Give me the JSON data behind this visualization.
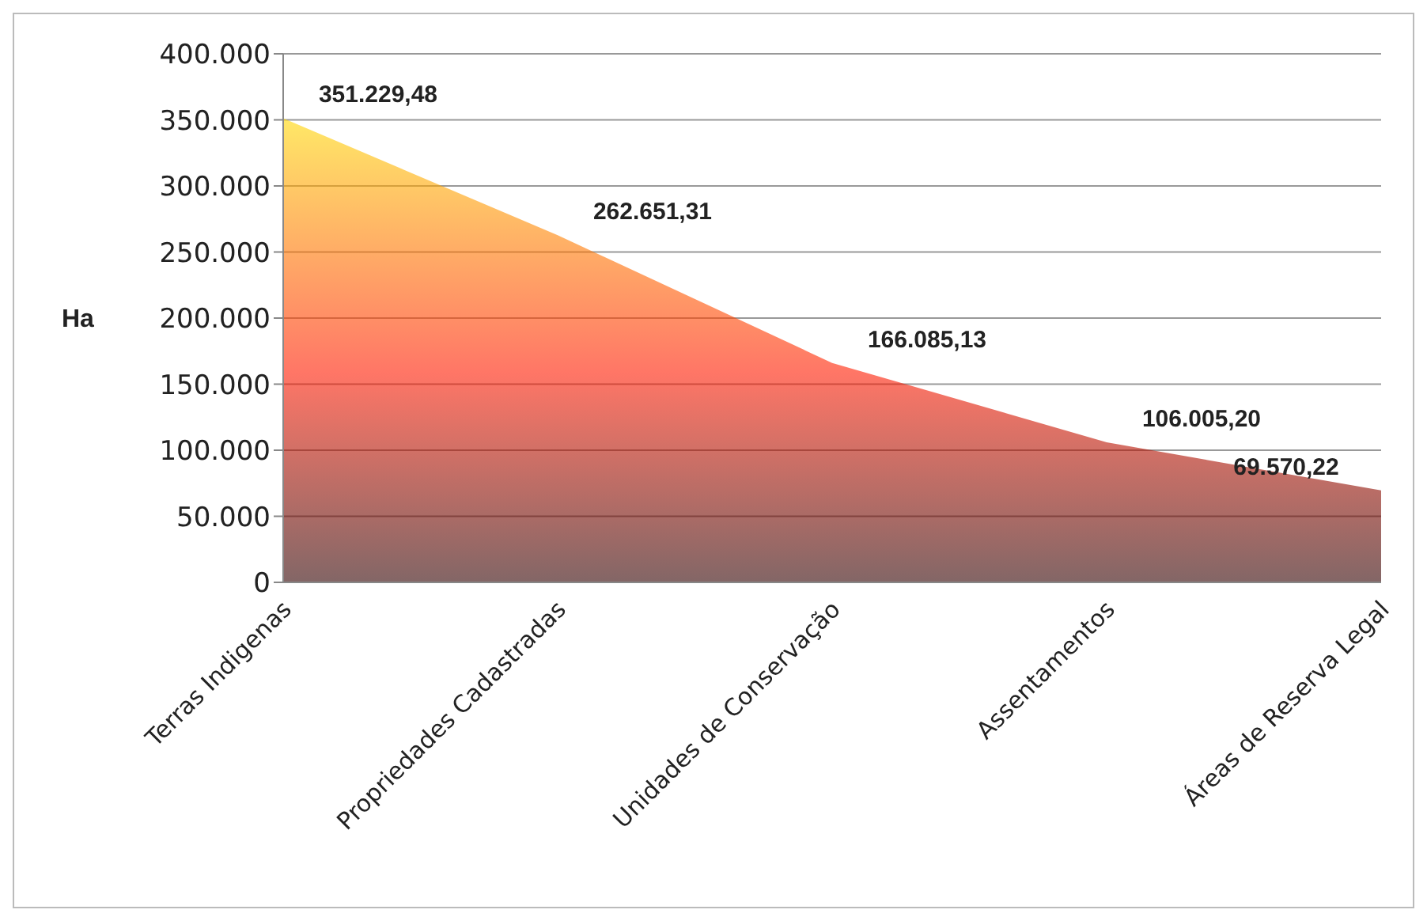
{
  "chart_data": {
    "type": "area",
    "ylabel": "Ha",
    "categories": [
      "Terras Indigenas",
      "Propriedades Cadastradas",
      "Unidades de Conservação",
      "Assentamentos",
      "Áreas de Reserva Legal"
    ],
    "series": [
      {
        "color": "#ff1a00",
        "values": [
          351229.48,
          262651.31,
          166085.13,
          106005.2,
          69570.22
        ],
        "value_labels": [
          "351.229,48",
          "262.651,31",
          "166.085,13",
          "106.005,20",
          "69.570,22"
        ]
      }
    ],
    "ylim": [
      0,
      400000
    ],
    "yticks": [
      {
        "value": 0,
        "label": "0"
      },
      {
        "value": 50000,
        "label": "50.000"
      },
      {
        "value": 100000,
        "label": "100.000"
      },
      {
        "value": 150000,
        "label": "150.000"
      },
      {
        "value": 200000,
        "label": "200.000"
      },
      {
        "value": 250000,
        "label": "250.000"
      },
      {
        "value": 300000,
        "label": "300.000"
      },
      {
        "value": 350000,
        "label": "350.000"
      },
      {
        "value": 400000,
        "label": "400.000"
      }
    ],
    "grid": "y",
    "legend": false
  }
}
